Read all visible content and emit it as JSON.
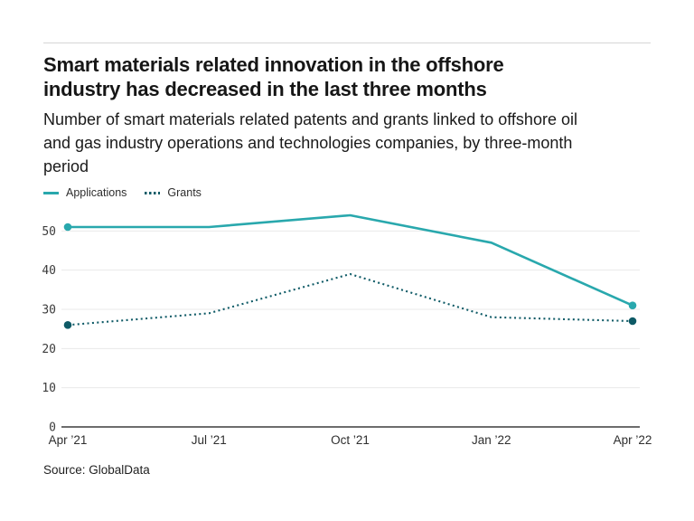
{
  "header": {
    "title_lines": [
      "Smart materials related innovation in the offshore",
      "industry has decreased in the last three months"
    ],
    "subtitle_lines": [
      "Number of smart materials related patents and grants linked to offshore oil",
      "and gas industry operations and technologies companies, by three-month",
      "period"
    ]
  },
  "legend": [
    {
      "label": "Applications",
      "style": "solid",
      "color": "#29A8AD"
    },
    {
      "label": "Grants",
      "style": "dotted",
      "color": "#0E5A66"
    }
  ],
  "chart_data": {
    "type": "line",
    "title": "Smart materials related innovation in the offshore industry has decreased in the last three months",
    "subtitle": "Number of smart materials related patents and grants linked to offshore oil and gas industry operations and technologies companies, by three-month period",
    "categories": [
      "Apr ’21",
      "Jul ’21",
      "Oct ’21",
      "Jan ’22",
      "Apr ’22"
    ],
    "series": [
      {
        "name": "Applications",
        "style": "solid",
        "color": "#29A8AD",
        "values": [
          51,
          51,
          54,
          47,
          31
        ]
      },
      {
        "name": "Grants",
        "style": "dotted",
        "color": "#0E5A66",
        "values": [
          26,
          29,
          39,
          28,
          27
        ]
      }
    ],
    "ylim": [
      0,
      55
    ],
    "y_ticks": [
      0,
      10,
      20,
      30,
      40,
      50
    ],
    "grid": "horizontal",
    "legend_position": "top-left",
    "markers": "endpoints",
    "colors": {
      "gridline": "#EAEAEA",
      "axis_line": "#3D3D3D",
      "tick_text": "#3C3C3C",
      "x_label_text": "#2E2E2E"
    }
  },
  "footer": {
    "source": "Source: GlobalData"
  }
}
